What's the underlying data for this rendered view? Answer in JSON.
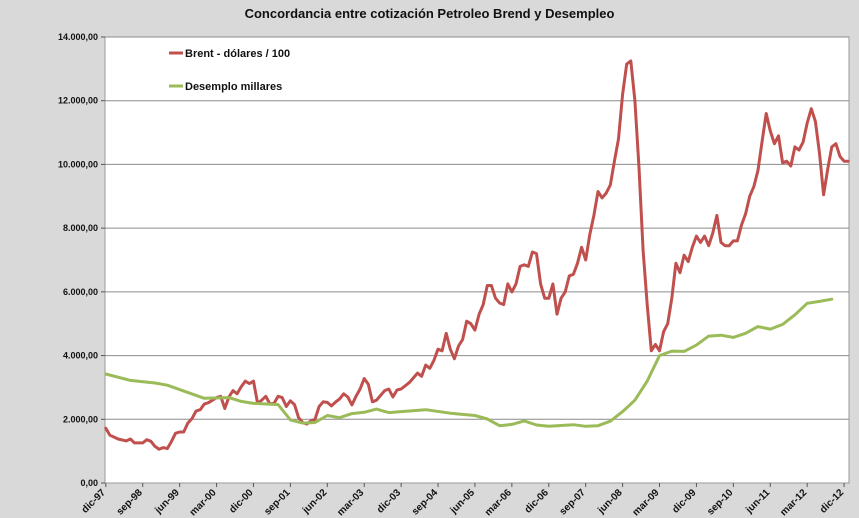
{
  "chart_data": {
    "type": "line",
    "title": "Concordancia entre cotización Petroleo Brend y Desempleo",
    "xlabel": "",
    "ylabel": "",
    "ylim": [
      0,
      14000
    ],
    "yticks": [
      0,
      2000,
      4000,
      6000,
      8000,
      10000,
      12000,
      14000
    ],
    "ytick_labels": [
      "0,00",
      "2.000,00",
      "4.000,00",
      "6.000,00",
      "8.000,00",
      "10.000,00",
      "12.000,00",
      "14.000,00"
    ],
    "x_tick_labels": [
      "dic-97",
      "sep-98",
      "jun-99",
      "mar-00",
      "dic-00",
      "sep-01",
      "jun-02",
      "mar-03",
      "dic-03",
      "sep-04",
      "jun-05",
      "mar-06",
      "dic-06",
      "sep-07",
      "jun-08",
      "mar-09",
      "dic-09",
      "sep-10",
      "jun-11",
      "mar-12",
      "dic-12"
    ],
    "grid": "horizontal",
    "legend_position": "top-left",
    "series": [
      {
        "name": "Brent - dólares / 100",
        "color": "#c0504d",
        "points": [
          [
            "dic-97",
            1720
          ],
          [
            "ene-98",
            1500
          ],
          [
            "mar-98",
            1380
          ],
          [
            "may-98",
            1320
          ],
          [
            "jun-98",
            1380
          ],
          [
            "jul-98",
            1260
          ],
          [
            "sep-98",
            1260
          ],
          [
            "oct-98",
            1360
          ],
          [
            "nov-98",
            1310
          ],
          [
            "dic-98",
            1150
          ],
          [
            "ene-99",
            1060
          ],
          [
            "feb-99",
            1110
          ],
          [
            "mar-99",
            1080
          ],
          [
            "abr-99",
            1300
          ],
          [
            "may-99",
            1560
          ],
          [
            "jun-99",
            1600
          ],
          [
            "jul-99",
            1600
          ],
          [
            "ago-99",
            1880
          ],
          [
            "sep-99",
            2020
          ],
          [
            "oct-99",
            2260
          ],
          [
            "nov-99",
            2300
          ],
          [
            "dic-99",
            2480
          ],
          [
            "ene-00",
            2520
          ],
          [
            "feb-00",
            2600
          ],
          [
            "mar-00",
            2680
          ],
          [
            "abr-00",
            2720
          ],
          [
            "may-00",
            2340
          ],
          [
            "jun-00",
            2700
          ],
          [
            "jul-00",
            2900
          ],
          [
            "ago-00",
            2800
          ],
          [
            "sep-00",
            3020
          ],
          [
            "oct-00",
            3200
          ],
          [
            "nov-00",
            3120
          ],
          [
            "dic-00",
            3200
          ],
          [
            "ene-01",
            2500
          ],
          [
            "feb-01",
            2600
          ],
          [
            "mar-01",
            2720
          ],
          [
            "abr-01",
            2480
          ],
          [
            "may-01",
            2500
          ],
          [
            "jun-01",
            2720
          ],
          [
            "jul-01",
            2680
          ],
          [
            "ago-01",
            2400
          ],
          [
            "sep-01",
            2580
          ],
          [
            "oct-01",
            2460
          ],
          [
            "nov-01",
            2050
          ],
          [
            "dic-01",
            1900
          ],
          [
            "ene-02",
            1850
          ],
          [
            "feb-02",
            1950
          ],
          [
            "mar-02",
            2000
          ],
          [
            "abr-02",
            2400
          ],
          [
            "may-02",
            2550
          ],
          [
            "jun-02",
            2530
          ],
          [
            "jul-02",
            2420
          ],
          [
            "ago-02",
            2540
          ],
          [
            "sep-02",
            2640
          ],
          [
            "oct-02",
            2800
          ],
          [
            "nov-02",
            2700
          ],
          [
            "dic-02",
            2450
          ],
          [
            "ene-03",
            2720
          ],
          [
            "feb-03",
            2950
          ],
          [
            "mar-03",
            3280
          ],
          [
            "abr-03",
            3100
          ],
          [
            "may-03",
            2550
          ],
          [
            "jun-03",
            2600
          ],
          [
            "jul-03",
            2750
          ],
          [
            "ago-03",
            2900
          ],
          [
            "sep-03",
            2950
          ],
          [
            "oct-03",
            2700
          ],
          [
            "nov-03",
            2920
          ],
          [
            "dic-03",
            2950
          ],
          [
            "ene-04",
            3050
          ],
          [
            "feb-04",
            3150
          ],
          [
            "mar-04",
            3300
          ],
          [
            "abr-04",
            3450
          ],
          [
            "may-04",
            3350
          ],
          [
            "jun-04",
            3700
          ],
          [
            "jul-04",
            3600
          ],
          [
            "ago-04",
            3850
          ],
          [
            "sep-04",
            4200
          ],
          [
            "oct-04",
            4150
          ],
          [
            "nov-04",
            4700
          ],
          [
            "dic-04",
            4200
          ],
          [
            "ene-05",
            3900
          ],
          [
            "feb-05",
            4300
          ],
          [
            "mar-05",
            4500
          ],
          [
            "abr-05",
            5080
          ],
          [
            "may-05",
            5000
          ],
          [
            "jun-05",
            4800
          ],
          [
            "jul-05",
            5300
          ],
          [
            "ago-05",
            5600
          ],
          [
            "sep-05",
            6200
          ],
          [
            "oct-05",
            6200
          ],
          [
            "nov-05",
            5800
          ],
          [
            "dic-05",
            5650
          ],
          [
            "ene-06",
            5600
          ],
          [
            "feb-06",
            6250
          ],
          [
            "mar-06",
            6000
          ],
          [
            "abr-06",
            6250
          ],
          [
            "may-06",
            6800
          ],
          [
            "jun-06",
            6850
          ],
          [
            "jul-06",
            6800
          ],
          [
            "ago-06",
            7250
          ],
          [
            "sep-06",
            7200
          ],
          [
            "oct-06",
            6250
          ],
          [
            "nov-06",
            5800
          ],
          [
            "dic-06",
            5800
          ],
          [
            "ene-07",
            6250
          ],
          [
            "feb-07",
            5300
          ],
          [
            "mar-07",
            5800
          ],
          [
            "abr-07",
            6000
          ],
          [
            "may-07",
            6500
          ],
          [
            "jun-07",
            6550
          ],
          [
            "jul-07",
            6900
          ],
          [
            "ago-07",
            7400
          ],
          [
            "sep-07",
            7000
          ],
          [
            "oct-07",
            7800
          ],
          [
            "nov-07",
            8400
          ],
          [
            "dic-07",
            9150
          ],
          [
            "ene-08",
            8950
          ],
          [
            "feb-08",
            9100
          ],
          [
            "mar-08",
            9350
          ],
          [
            "abr-08",
            10100
          ],
          [
            "may-08",
            10800
          ],
          [
            "jun-08",
            12200
          ],
          [
            "jul-08",
            13150
          ],
          [
            "ago-08",
            13250
          ],
          [
            "sep-08",
            12000
          ],
          [
            "oct-08",
            9900
          ],
          [
            "nov-08",
            7300
          ],
          [
            "dic-08",
            5600
          ],
          [
            "ene-09",
            4150
          ],
          [
            "feb-09",
            4350
          ],
          [
            "mar-09",
            4150
          ],
          [
            "abr-09",
            4750
          ],
          [
            "may-09",
            5000
          ],
          [
            "jun-09",
            5800
          ],
          [
            "jul-09",
            6900
          ],
          [
            "ago-09",
            6600
          ],
          [
            "sep-09",
            7150
          ],
          [
            "oct-09",
            6950
          ],
          [
            "nov-09",
            7400
          ],
          [
            "dic-09",
            7750
          ],
          [
            "ene-10",
            7550
          ],
          [
            "feb-10",
            7750
          ],
          [
            "mar-10",
            7450
          ],
          [
            "abr-10",
            7850
          ],
          [
            "may-10",
            8400
          ],
          [
            "jun-10",
            7550
          ],
          [
            "jul-10",
            7450
          ],
          [
            "ago-10",
            7450
          ],
          [
            "sep-10",
            7600
          ],
          [
            "oct-10",
            7600
          ],
          [
            "nov-10",
            8100
          ],
          [
            "dic-10",
            8450
          ],
          [
            "ene-11",
            9000
          ],
          [
            "feb-11",
            9300
          ],
          [
            "mar-11",
            9800
          ],
          [
            "abr-11",
            10700
          ],
          [
            "may-11",
            11600
          ],
          [
            "jun-11",
            11050
          ],
          [
            "jul-11",
            10650
          ],
          [
            "ago-11",
            10900
          ],
          [
            "sep-11",
            10050
          ],
          [
            "oct-11",
            10100
          ],
          [
            "nov-11",
            9950
          ],
          [
            "dic-11",
            10550
          ],
          [
            "ene-12",
            10450
          ],
          [
            "feb-12",
            10700
          ],
          [
            "mar-12",
            11300
          ],
          [
            "abr-12",
            11750
          ],
          [
            "may-12",
            11350
          ],
          [
            "jun-12",
            10350
          ],
          [
            "jul-12",
            9050
          ],
          [
            "ago-12",
            9850
          ],
          [
            "sep-12",
            10550
          ],
          [
            "oct-12",
            10650
          ],
          [
            "nov-12",
            10250
          ],
          [
            "dic-12",
            10100
          ],
          [
            "ene-13",
            10100
          ]
        ]
      },
      {
        "name": "Desemplo millares",
        "color": "#9bbb59",
        "points": [
          [
            "dic-97",
            3420
          ],
          [
            "jun-98",
            3220
          ],
          [
            "dic-98",
            3140
          ],
          [
            "mar-99",
            3070
          ],
          [
            "dic-99",
            2660
          ],
          [
            "jun-00",
            2680
          ],
          [
            "sep-00",
            2560
          ],
          [
            "dic-00",
            2500
          ],
          [
            "jun-01",
            2460
          ],
          [
            "sep-01",
            1980
          ],
          [
            "dic-01",
            1880
          ],
          [
            "mar-02",
            1900
          ],
          [
            "jun-02",
            2120
          ],
          [
            "sep-02",
            2050
          ],
          [
            "dic-02",
            2180
          ],
          [
            "mar-03",
            2220
          ],
          [
            "jun-03",
            2320
          ],
          [
            "sep-03",
            2210
          ],
          [
            "dic-03",
            2240
          ],
          [
            "jun-04",
            2300
          ],
          [
            "dic-04",
            2190
          ],
          [
            "jun-05",
            2120
          ],
          [
            "sep-05",
            2010
          ],
          [
            "dic-05",
            1800
          ],
          [
            "mar-06",
            1840
          ],
          [
            "jun-06",
            1950
          ],
          [
            "sep-06",
            1820
          ],
          [
            "dic-06",
            1780
          ],
          [
            "jun-07",
            1830
          ],
          [
            "sep-07",
            1780
          ],
          [
            "dic-07",
            1800
          ],
          [
            "mar-08",
            1940
          ],
          [
            "jun-08",
            2240
          ],
          [
            "sep-08",
            2600
          ],
          [
            "dic-08",
            3200
          ],
          [
            "mar-09",
            4000
          ],
          [
            "jun-09",
            4140
          ],
          [
            "sep-09",
            4130
          ],
          [
            "dic-09",
            4330
          ],
          [
            "mar-10",
            4610
          ],
          [
            "jun-10",
            4640
          ],
          [
            "sep-10",
            4570
          ],
          [
            "dic-10",
            4700
          ],
          [
            "mar-11",
            4910
          ],
          [
            "jun-11",
            4830
          ],
          [
            "sep-11",
            4980
          ],
          [
            "dic-11",
            5280
          ],
          [
            "mar-12",
            5640
          ],
          [
            "jun-12",
            5700
          ],
          [
            "sep-12",
            5770
          ]
        ]
      }
    ]
  }
}
